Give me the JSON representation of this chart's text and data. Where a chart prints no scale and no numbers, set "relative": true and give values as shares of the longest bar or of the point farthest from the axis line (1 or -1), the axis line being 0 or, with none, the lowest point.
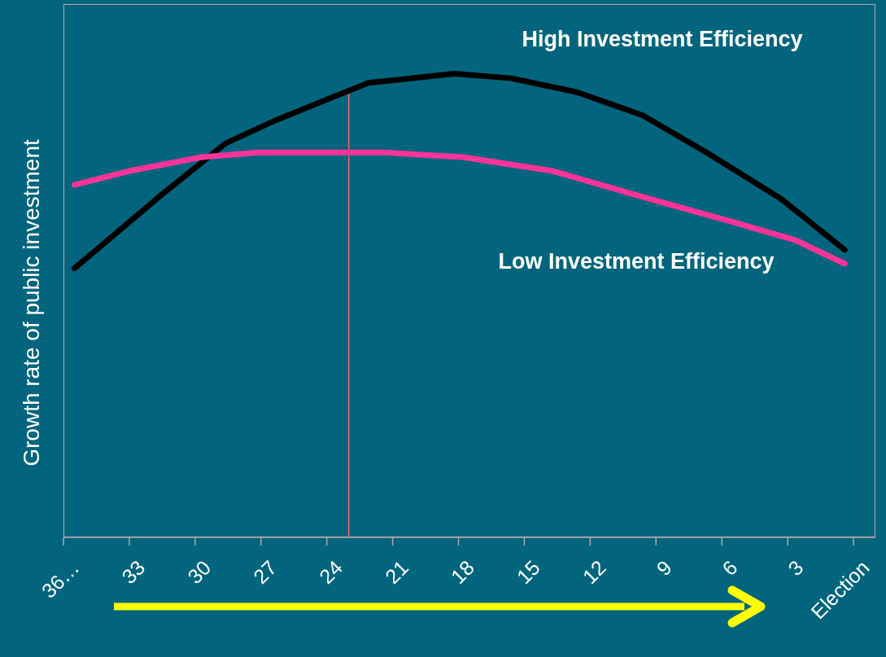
{
  "chart_data": {
    "type": "line",
    "relative": true,
    "ylabel": "Growth rate of public investment",
    "xlim": [
      36,
      -1
    ],
    "xticks": [
      {
        "value": 36,
        "label": "36…"
      },
      33,
      30,
      27,
      24,
      21,
      18,
      15,
      12,
      9,
      6,
      3,
      {
        "value": 0,
        "label": "Election"
      }
    ],
    "series": [
      {
        "name": "High Investment Efficiency",
        "color": "#000000",
        "x": [
          35.5,
          31.5,
          28.6,
          26.3,
          23.7,
          22.1,
          18.2,
          15.6,
          12.6,
          9.6,
          6.7,
          3.3,
          0.4
        ],
        "values": [
          0.58,
          0.74,
          0.85,
          0.9,
          0.95,
          0.98,
          1.0,
          0.99,
          0.96,
          0.91,
          0.83,
          0.73,
          0.62
        ]
      },
      {
        "name": "Low Investment Efficiency",
        "color": "#ff3399",
        "x": [
          35.5,
          33,
          29.7,
          27.1,
          24.1,
          23,
          21.4,
          17.8,
          13.7,
          9.3,
          5.5,
          2.6,
          0.4
        ],
        "values": [
          0.76,
          0.79,
          0.82,
          0.83,
          0.83,
          0.83,
          0.83,
          0.82,
          0.79,
          0.73,
          0.68,
          0.64,
          0.59
        ]
      }
    ],
    "ref_lines": [
      {
        "axis": "x",
        "value": 23,
        "color": "#ff6666"
      }
    ]
  }
}
